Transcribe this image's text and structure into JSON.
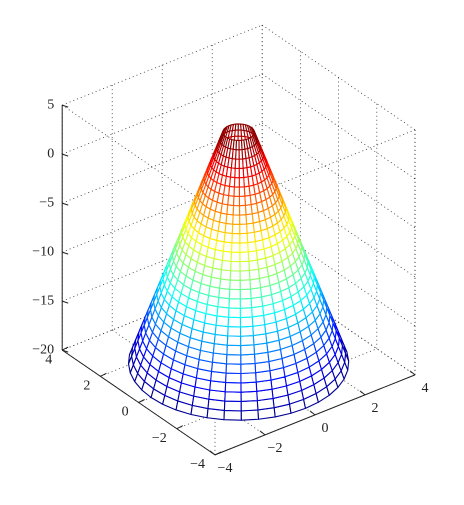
{
  "chart_data": {
    "type": "mesh3d",
    "xlim": [
      -4,
      4
    ],
    "ylim": [
      -4,
      4
    ],
    "zlim": [
      -20,
      5
    ],
    "xticks": [
      {
        "value": -4,
        "label": "−4"
      },
      {
        "value": -2,
        "label": "−2"
      },
      0,
      2,
      4
    ],
    "yticks": [
      {
        "value": -4,
        "label": "−4"
      },
      {
        "value": -2,
        "label": "−2"
      },
      0,
      2,
      4
    ],
    "zticks": [
      {
        "value": -20,
        "label": "−20"
      },
      {
        "value": -15,
        "label": "−15"
      },
      {
        "value": -10,
        "label": "−10"
      },
      {
        "value": -5,
        "label": "−5"
      },
      0,
      5
    ],
    "grid": true,
    "colormap": "jet",
    "meridians": 40,
    "rings": {
      "r": [
        0.5,
        0.6,
        0.7,
        0.8,
        0.9,
        1.0,
        1.1,
        1.2,
        1.3,
        1.4,
        1.5,
        1.6,
        1.7,
        1.8,
        1.9,
        2.0,
        2.1,
        2.2,
        2.3,
        2.4,
        2.5,
        2.6,
        2.7,
        2.8,
        2.9,
        3.0,
        3.1,
        3.2,
        3.3,
        3.4,
        3.5
      ],
      "z": [
        3.5,
        2.72,
        1.93,
        1.15,
        0.37,
        -0.42,
        -1.2,
        -1.98,
        -2.77,
        -3.55,
        -4.33,
        -5.12,
        -5.9,
        -6.68,
        -7.47,
        -8.25,
        -9.03,
        -9.82,
        -10.6,
        -11.38,
        -12.17,
        -12.95,
        -13.73,
        -14.52,
        -15.3,
        -16.08,
        -16.87,
        -17.65,
        -18.43,
        -19.22,
        -20
      ]
    }
  }
}
